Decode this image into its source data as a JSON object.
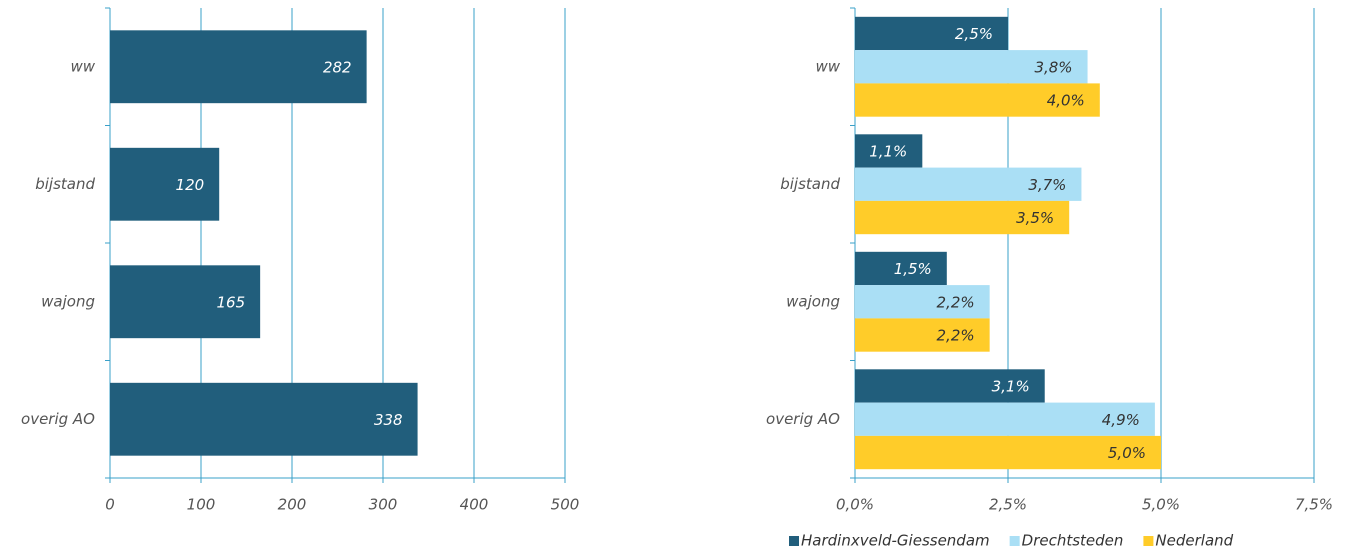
{
  "chart_data": [
    {
      "type": "bar",
      "orientation": "horizontal",
      "categories": [
        "ww",
        "bijstand",
        "wajong",
        "overig AO"
      ],
      "values": [
        282,
        120,
        165,
        338
      ],
      "color": "#215e7c",
      "xlim": [
        0,
        500
      ],
      "xticks": [
        0,
        100,
        200,
        300,
        400,
        500
      ],
      "grid": true
    },
    {
      "type": "bar",
      "orientation": "horizontal",
      "categories": [
        "ww",
        "bijstand",
        "wajong",
        "overig AO"
      ],
      "series": [
        {
          "name": "Hardinxveld-Giessendam",
          "color": "#215e7c",
          "values": [
            2.5,
            1.1,
            1.5,
            3.1
          ],
          "value_labels": [
            "2,5%",
            "1,1%",
            "1,5%",
            "3,1%"
          ]
        },
        {
          "name": "Drechtsteden",
          "color": "#aadff5",
          "values": [
            3.8,
            3.7,
            2.2,
            4.9
          ],
          "value_labels": [
            "3,8%",
            "3,7%",
            "2,2%",
            "4,9%"
          ]
        },
        {
          "name": "Nederland",
          "color": "#ffcc29",
          "values": [
            4.0,
            3.5,
            2.2,
            5.0
          ],
          "value_labels": [
            "4,0%",
            "3,5%",
            "2,2%",
            "5,0%"
          ]
        }
      ],
      "xlim": [
        0,
        7.5
      ],
      "xticks": [
        {
          "value": 0,
          "label": "0,0%"
        },
        {
          "value": 2.5,
          "label": "2,5%"
        },
        {
          "value": 5,
          "label": "5,0%"
        },
        {
          "value": 7.5,
          "label": "7,5%"
        }
      ],
      "grid": true,
      "legend": "bottom"
    }
  ]
}
